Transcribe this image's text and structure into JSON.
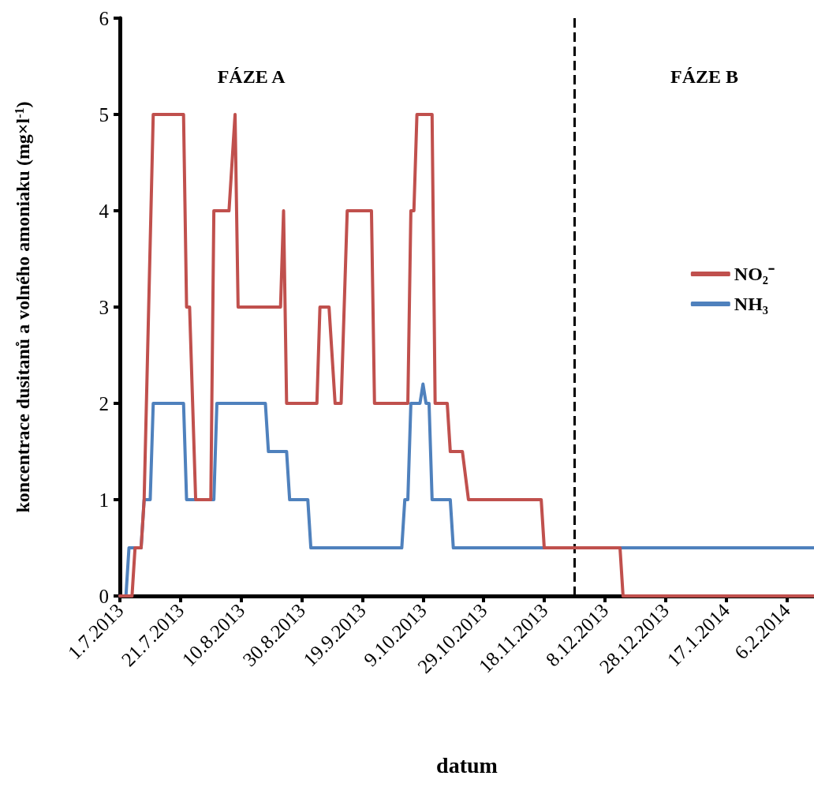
{
  "chart_data": {
    "type": "line",
    "xlabel": "datum",
    "ylabel": "koncentrace dusitanů a volného amoniaku (mg×l$^{-1}$)",
    "annotations": [
      "FÁZE A",
      "FÁZE B"
    ],
    "series": [
      {
        "name": "NO₂⁻",
        "color": "#c0504d",
        "x": [
          "2013-07-01",
          "2013-07-05",
          "2013-07-06",
          "2013-07-08",
          "2013-07-09",
          "2013-07-12",
          "2013-07-22",
          "2013-07-23",
          "2013-07-24",
          "2013-07-26",
          "2013-07-31",
          "2013-08-01",
          "2013-08-06",
          "2013-08-08",
          "2013-08-09",
          "2013-08-23",
          "2013-08-24",
          "2013-08-25",
          "2013-09-04",
          "2013-09-05",
          "2013-09-08",
          "2013-09-10",
          "2013-09-12",
          "2013-09-14",
          "2013-09-22",
          "2013-09-23",
          "2013-10-04",
          "2013-10-05",
          "2013-10-06",
          "2013-10-07",
          "2013-10-12",
          "2013-10-13",
          "2013-10-17",
          "2013-10-18",
          "2013-10-22",
          "2013-10-24",
          "2013-11-17",
          "2013-11-18",
          "2013-12-13",
          "2013-12-14",
          "2014-02-15"
        ],
        "values": [
          0,
          0,
          0.5,
          0.5,
          1,
          5,
          5,
          3,
          3,
          1,
          1,
          4,
          4,
          5,
          3,
          3,
          4,
          2,
          2,
          3,
          3,
          2,
          2,
          4,
          4,
          2,
          2,
          4,
          4,
          5,
          5,
          2,
          2,
          1.5,
          1.5,
          1,
          1,
          0.5,
          0.5,
          0,
          0
        ]
      },
      {
        "name": "NH₃",
        "color": "#4f81bd",
        "x": [
          "2013-07-01",
          "2013-07-03",
          "2013-07-04",
          "2013-07-08",
          "2013-07-09",
          "2013-07-11",
          "2013-07-12",
          "2013-07-22",
          "2013-07-23",
          "2013-08-01",
          "2013-08-02",
          "2013-08-18",
          "2013-08-19",
          "2013-08-25",
          "2013-08-26",
          "2013-09-01",
          "2013-09-02",
          "2013-10-02",
          "2013-10-03",
          "2013-10-04",
          "2013-10-05",
          "2013-10-08",
          "2013-10-09",
          "2013-10-10",
          "2013-10-11",
          "2013-10-12",
          "2013-10-18",
          "2013-10-19",
          "2014-02-15"
        ],
        "values": [
          0,
          0,
          0.5,
          0.5,
          1,
          1,
          2,
          2,
          1,
          1,
          2,
          2,
          1.5,
          1.5,
          1,
          1,
          0.5,
          0.5,
          1,
          1,
          2,
          2,
          2.2,
          2,
          2,
          1,
          1,
          0.5,
          0.5
        ]
      }
    ],
    "xlim": [
      "2013-07-01",
      "2014-02-15"
    ],
    "xticks": [
      {
        "value": "2013-07-01",
        "label": "1.7.2013"
      },
      {
        "value": "2013-07-21",
        "label": "21.7.2013"
      },
      {
        "value": "2013-08-10",
        "label": "10.8.2013"
      },
      {
        "value": "2013-08-30",
        "label": "30.8.2013"
      },
      {
        "value": "2013-09-19",
        "label": "19.9.2013"
      },
      {
        "value": "2013-10-09",
        "label": "9.10.2013"
      },
      {
        "value": "2013-10-29",
        "label": "29.10.2013"
      },
      {
        "value": "2013-11-18",
        "label": "18.11.2013"
      },
      {
        "value": "2013-12-08",
        "label": "8.12.2013"
      },
      {
        "value": "2013-12-28",
        "label": "28.12.2013"
      },
      {
        "value": "2014-01-17",
        "label": "17.1.2014"
      },
      {
        "value": "2014-02-06",
        "label": "6.2.2014"
      }
    ],
    "ylim": [
      0,
      6
    ],
    "yticks": [
      0,
      1,
      2,
      3,
      4,
      5,
      6
    ],
    "ref_lines": [
      {
        "axis": "x",
        "value": "2013-11-28",
        "color": "#000000",
        "line_style": "dashed"
      }
    ],
    "grid": false,
    "legend": "right",
    "marker": "none",
    "line_style": "solid"
  }
}
